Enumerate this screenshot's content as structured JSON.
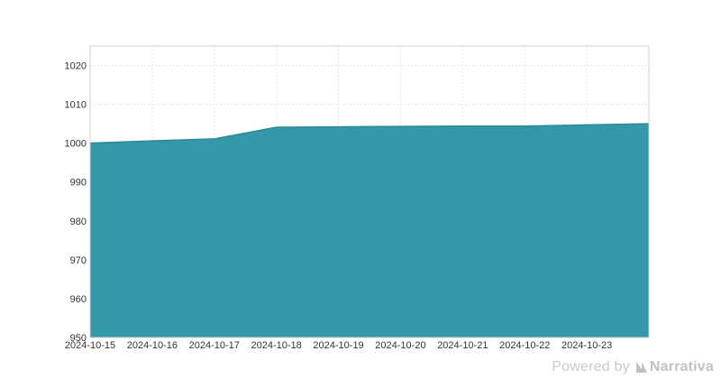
{
  "watermark": {
    "prefix": "Powered by",
    "brand": "Narrativa"
  },
  "colors": {
    "area_fill": "#3498a8",
    "area_stroke": "#2c8a97",
    "grid": "#e6e6e6",
    "axis": "#d0d0d0",
    "tick_text": "#333333",
    "watermark": "#c9c9c9"
  },
  "chart_data": {
    "type": "area",
    "x": [
      "2024-10-15",
      "2024-10-16",
      "2024-10-17",
      "2024-10-18",
      "2024-10-19",
      "2024-10-20",
      "2024-10-21",
      "2024-10-22",
      "2024-10-23",
      "2024-10-24"
    ],
    "series": [
      {
        "values": [
          1000,
          1000.6,
          1001.1,
          1004.1,
          1004.2,
          1004.3,
          1004.4,
          1004.4,
          1004.7,
          1005.0
        ]
      }
    ],
    "x_tick_labels": [
      "2024-10-15",
      "2024-10-16",
      "2024-10-17",
      "2024-10-18",
      "2024-10-19",
      "2024-10-20",
      "2024-10-21",
      "2024-10-22",
      "2024-10-23"
    ],
    "y_ticks": [
      950,
      960,
      970,
      980,
      990,
      1000,
      1010,
      1020
    ],
    "ylim": [
      950,
      1025
    ],
    "title": "",
    "xlabel": "",
    "ylabel": "",
    "grid": true,
    "legend": "none"
  }
}
